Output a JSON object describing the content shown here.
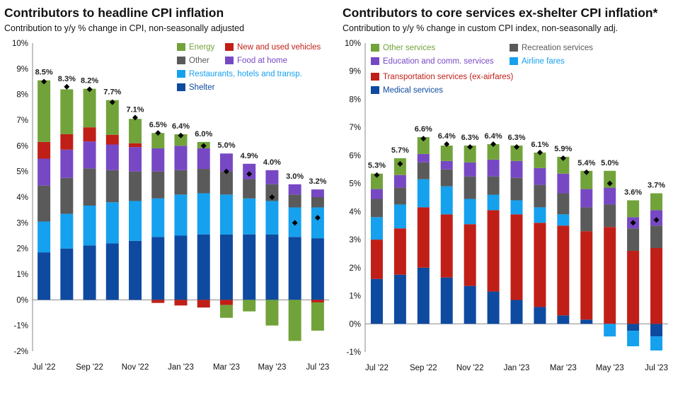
{
  "colors": {
    "Energy": "#72a33b",
    "New and used vehicles": "#c01f17",
    "Other": "#5a5a5a",
    "Food at home": "#7748c4",
    "Restaurants, hotels and transp.": "#15a1ee",
    "Shelter": "#0e4aa0",
    "Other services": "#72a33b",
    "Recreation services": "#5a5a5a",
    "Education and comm. services": "#7748c4",
    "Airline fares": "#15a1ee",
    "Transportation services (ex-airfares)": "#c01f17",
    "Medical services": "#0e4aa0"
  },
  "chart_data": [
    {
      "type": "bar",
      "stacked": true,
      "title": "Contributors to headline CPI inflation",
      "subtitle": "Contribution to y/y % change in CPI, non-seasonally adjusted",
      "ylim": [
        -2,
        10
      ],
      "yticks": [
        "-2%",
        "-1%",
        "0%",
        "1%",
        "2%",
        "3%",
        "4%",
        "5%",
        "6%",
        "7%",
        "8%",
        "9%",
        "10%"
      ],
      "categories": [
        "Jul '22",
        "Aug '22",
        "Sep '22",
        "Oct '22",
        "Nov '22",
        "Dec '22",
        "Jan '23",
        "Feb '23",
        "Mar '23",
        "Apr '23",
        "May '23",
        "Jun '23",
        "Jul '23"
      ],
      "xtick_labels": [
        "Jul '22",
        "Sep '22",
        "Nov '22",
        "Jan '23",
        "Mar '23",
        "May '23",
        "Jul '23"
      ],
      "legend": {
        "placement": "top-right",
        "entries": [
          {
            "name": "Energy",
            "color_key": "Energy"
          },
          {
            "name": "New and used vehicles",
            "color_key": "New and used vehicles"
          },
          {
            "name": "Other",
            "color_key": "Other"
          },
          {
            "name": "Food at home",
            "color_key": "Food at home"
          },
          {
            "name": "Restaurants, hotels and transp.",
            "color_key": "Restaurants, hotels and transp."
          },
          {
            "name": "Shelter",
            "color_key": "Shelter"
          }
        ]
      },
      "series": [
        {
          "name": "Shelter",
          "values": [
            1.85,
            2.0,
            2.12,
            2.2,
            2.3,
            2.45,
            2.5,
            2.55,
            2.55,
            2.55,
            2.55,
            2.45,
            2.4
          ]
        },
        {
          "name": "Restaurants, hotels and transp.",
          "values": [
            1.2,
            1.35,
            1.55,
            1.6,
            1.55,
            1.5,
            1.6,
            1.6,
            1.55,
            1.4,
            1.3,
            1.15,
            1.2
          ]
        },
        {
          "name": "Other",
          "values": [
            1.4,
            1.4,
            1.45,
            1.25,
            1.15,
            1.05,
            0.95,
            0.95,
            0.9,
            0.75,
            0.65,
            0.5,
            0.4
          ]
        },
        {
          "name": "Food at home",
          "values": [
            1.05,
            1.1,
            1.05,
            1.0,
            0.95,
            0.9,
            0.95,
            0.8,
            0.7,
            0.6,
            0.55,
            0.4,
            0.3
          ]
        },
        {
          "name": "New and used vehicles",
          "values": [
            0.65,
            0.6,
            0.55,
            0.38,
            0.15,
            -0.12,
            -0.22,
            -0.3,
            -0.2,
            0.0,
            0.0,
            0.0,
            -0.1
          ]
        },
        {
          "name": "Energy",
          "values": [
            2.4,
            1.75,
            1.5,
            1.35,
            0.95,
            0.6,
            0.45,
            0.25,
            -0.5,
            -0.45,
            -1.0,
            -1.6,
            -1.1
          ]
        }
      ],
      "headline": [
        8.5,
        8.3,
        8.2,
        7.7,
        7.1,
        6.5,
        6.4,
        6.0,
        5.0,
        4.9,
        4.0,
        3.0,
        3.2
      ],
      "headline_labels": [
        "8.5%",
        "8.3%",
        "8.2%",
        "7.7%",
        "7.1%",
        "6.5%",
        "6.4%",
        "6.0%",
        "5.0%",
        "4.9%",
        "4.0%",
        "3.0%",
        "3.2%"
      ],
      "label_shown": [
        true,
        true,
        true,
        true,
        true,
        true,
        true,
        true,
        true,
        true,
        true,
        true,
        true
      ]
    },
    {
      "type": "bar",
      "stacked": true,
      "title": "Contributors to core services ex-shelter CPI inflation*",
      "subtitle": "Contribution to y/y % change in custom CPI index, non-seasonally adj.",
      "ylim": [
        -1,
        10
      ],
      "yticks": [
        "-1%",
        "0%",
        "1%",
        "2%",
        "3%",
        "4%",
        "5%",
        "6%",
        "7%",
        "8%",
        "9%",
        "10%"
      ],
      "categories": [
        "Jul '22",
        "Aug '22",
        "Sep '22",
        "Oct '22",
        "Nov '22",
        "Dec '22",
        "Jan '23",
        "Feb '23",
        "Mar '23",
        "Apr '23",
        "May '23",
        "Jun '23",
        "Jul '23"
      ],
      "xtick_labels": [
        "Jul '22",
        "Sep '22",
        "Nov '22",
        "Jan '23",
        "Mar '23",
        "May '23",
        "Jul '23"
      ],
      "legend": {
        "placement": "top",
        "entries": [
          {
            "name": "Other services",
            "color_key": "Other services"
          },
          {
            "name": "Recreation services",
            "color_key": "Recreation services"
          },
          {
            "name": "Education and comm. services",
            "color_key": "Education and comm. services"
          },
          {
            "name": "Airline fares",
            "color_key": "Airline fares"
          },
          {
            "name": "Transportation services (ex-airfares)",
            "color_key": "Transportation services (ex-airfares)"
          },
          {
            "name": "Medical services",
            "color_key": "Medical services"
          }
        ]
      },
      "series": [
        {
          "name": "Medical services",
          "values": [
            1.6,
            1.75,
            2.0,
            1.65,
            1.35,
            1.15,
            0.85,
            0.6,
            0.3,
            0.15,
            0.0,
            -0.25,
            -0.45
          ]
        },
        {
          "name": "Transportation services (ex-airfares)",
          "values": [
            1.4,
            1.65,
            2.15,
            2.25,
            2.2,
            2.9,
            3.05,
            3.0,
            3.2,
            3.15,
            3.45,
            2.6,
            2.7
          ]
        },
        {
          "name": "Airline fares",
          "values": [
            0.8,
            0.85,
            1.0,
            1.0,
            0.9,
            0.55,
            0.5,
            0.55,
            0.4,
            0.0,
            -0.45,
            -0.55,
            -0.5
          ]
        },
        {
          "name": "Recreation services",
          "values": [
            0.65,
            0.6,
            0.6,
            0.6,
            0.8,
            0.65,
            0.8,
            0.8,
            0.75,
            0.85,
            0.8,
            0.8,
            0.8
          ]
        },
        {
          "name": "Education and comm. services",
          "values": [
            0.35,
            0.45,
            0.3,
            0.3,
            0.5,
            0.6,
            0.6,
            0.6,
            0.7,
            0.65,
            0.6,
            0.4,
            0.55
          ]
        },
        {
          "name": "Other services",
          "values": [
            0.55,
            0.6,
            0.6,
            0.55,
            0.6,
            0.55,
            0.55,
            0.55,
            0.6,
            0.65,
            0.6,
            0.6,
            0.6
          ]
        }
      ],
      "headline": [
        5.3,
        5.7,
        6.6,
        6.4,
        6.3,
        6.4,
        6.3,
        6.1,
        5.9,
        5.4,
        5.0,
        3.6,
        3.7
      ],
      "headline_labels": [
        "5.3%",
        "5.7%",
        "6.6%",
        "6.4%",
        "6.3%",
        "6.4%",
        "6.3%",
        "6.1%",
        "5.9%",
        "5.4%",
        "5.0%",
        "3.6%",
        "3.7%"
      ],
      "label_shown": [
        true,
        true,
        true,
        true,
        true,
        true,
        true,
        true,
        true,
        true,
        true,
        true,
        true
      ]
    }
  ]
}
